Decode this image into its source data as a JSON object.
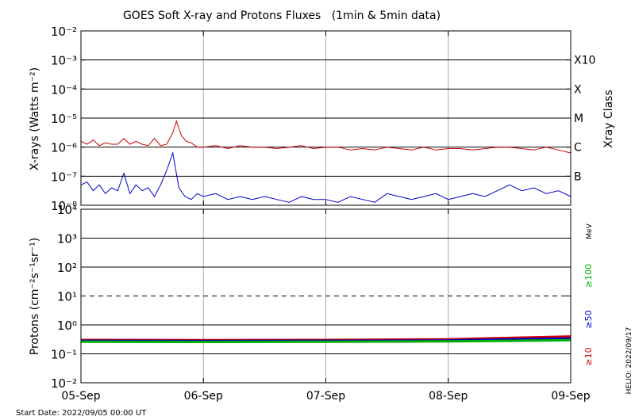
{
  "chart_data": {
    "type": "line",
    "title": "GOES Soft X-ray and Protons Fluxes   (1min & 5min data)",
    "x_ticks": [
      "05-Sep",
      "06-Sep",
      "07-Sep",
      "08-Sep",
      "09-Sep"
    ],
    "start_date": "Start Date: 2022/09/05 00:00 UT",
    "credit": "HELIO: 2022/09/17",
    "xray_panel": {
      "ylabel": "X-rays (Watts m⁻²)",
      "scale": "log",
      "ylim_exp": [
        -8,
        -2
      ],
      "y_ticks": [
        "10⁻²",
        "10⁻³",
        "10⁻⁴",
        "10⁻⁵",
        "10⁻⁶",
        "10⁻⁷",
        "10⁻⁸"
      ],
      "class_title": "Xray Class",
      "classes": [
        {
          "label": "X10",
          "exp": -3
        },
        {
          "label": "X",
          "exp": -4
        },
        {
          "label": "M",
          "exp": -5
        },
        {
          "label": "C",
          "exp": -6
        },
        {
          "label": "B",
          "exp": -7
        }
      ],
      "series": [
        {
          "color": "#cc0000",
          "x_days": [
            0,
            0.05,
            0.1,
            0.15,
            0.2,
            0.25,
            0.3,
            0.35,
            0.4,
            0.45,
            0.5,
            0.55,
            0.6,
            0.65,
            0.7,
            0.75,
            0.78,
            0.82,
            0.86,
            0.9,
            0.95,
            1.0,
            1.1,
            1.2,
            1.3,
            1.4,
            1.5,
            1.6,
            1.7,
            1.8,
            1.9,
            2.0,
            2.1,
            2.2,
            2.3,
            2.4,
            2.5,
            2.6,
            2.7,
            2.8,
            2.9,
            3.0,
            3.1,
            3.2,
            3.3,
            3.4,
            3.5,
            3.6,
            3.7,
            3.8,
            3.9,
            4.0
          ],
          "log10_flux": [
            -5.8,
            -5.9,
            -5.75,
            -5.95,
            -5.85,
            -5.9,
            -5.9,
            -5.7,
            -5.9,
            -5.8,
            -5.9,
            -5.95,
            -5.7,
            -5.95,
            -5.9,
            -5.5,
            -5.1,
            -5.6,
            -5.8,
            -5.85,
            -6.0,
            -6.0,
            -5.95,
            -6.05,
            -5.95,
            -6.0,
            -6.0,
            -6.05,
            -6.0,
            -5.95,
            -6.05,
            -6.0,
            -6.0,
            -6.1,
            -6.05,
            -6.1,
            -6.0,
            -6.05,
            -6.1,
            -6.0,
            -6.1,
            -6.05,
            -6.05,
            -6.1,
            -6.05,
            -6.0,
            -6.0,
            -6.05,
            -6.1,
            -6.0,
            -6.1,
            -6.2
          ]
        },
        {
          "color": "#0000cc",
          "x_days": [
            0,
            0.05,
            0.1,
            0.15,
            0.2,
            0.25,
            0.3,
            0.35,
            0.4,
            0.45,
            0.5,
            0.55,
            0.6,
            0.65,
            0.7,
            0.75,
            0.8,
            0.85,
            0.9,
            0.95,
            1.0,
            1.1,
            1.2,
            1.3,
            1.4,
            1.5,
            1.6,
            1.7,
            1.8,
            1.9,
            2.0,
            2.1,
            2.2,
            2.3,
            2.4,
            2.5,
            2.6,
            2.7,
            2.8,
            2.9,
            3.0,
            3.1,
            3.2,
            3.3,
            3.4,
            3.5,
            3.6,
            3.7,
            3.8,
            3.9,
            4.0
          ],
          "log10_flux": [
            -7.3,
            -7.2,
            -7.5,
            -7.3,
            -7.6,
            -7.4,
            -7.5,
            -6.9,
            -7.6,
            -7.3,
            -7.5,
            -7.4,
            -7.7,
            -7.3,
            -6.8,
            -6.2,
            -7.4,
            -7.7,
            -7.8,
            -7.6,
            -7.7,
            -7.6,
            -7.8,
            -7.7,
            -7.8,
            -7.7,
            -7.8,
            -7.9,
            -7.7,
            -7.8,
            -7.8,
            -7.9,
            -7.7,
            -7.8,
            -7.9,
            -7.6,
            -7.7,
            -7.8,
            -7.7,
            -7.6,
            -7.8,
            -7.7,
            -7.6,
            -7.7,
            -7.5,
            -7.3,
            -7.5,
            -7.4,
            -7.6,
            -7.5,
            -7.7
          ]
        }
      ]
    },
    "proton_panel": {
      "ylabel": "Protons (cm⁻²s⁻¹sr⁻¹)",
      "scale": "log",
      "ylim_exp": [
        -2,
        4
      ],
      "y_ticks": [
        "10⁴",
        "10³",
        "10²",
        "10¹",
        "10⁰",
        "10⁻¹",
        "10⁻²"
      ],
      "threshold_exp": 1,
      "unit": "MeV",
      "legend": [
        {
          "label": "≥100",
          "color": "#00b000"
        },
        {
          "label": "≥50",
          "color": "#0000cc"
        },
        {
          "label": "≥10",
          "color": "#cc0000"
        }
      ],
      "series": [
        {
          "label": "≥10",
          "color": "#cc0000",
          "x_days": [
            0,
            1,
            2,
            3,
            3.5,
            4
          ],
          "log10_flux": [
            -0.52,
            -0.53,
            -0.52,
            -0.5,
            -0.45,
            -0.4
          ]
        },
        {
          "label": "≥50",
          "color": "#0000cc",
          "x_days": [
            0,
            1,
            2,
            3,
            3.5,
            4
          ],
          "log10_flux": [
            -0.55,
            -0.56,
            -0.55,
            -0.54,
            -0.5,
            -0.47
          ]
        },
        {
          "label": "≥100",
          "color": "#00b000",
          "x_days": [
            0,
            1,
            2,
            3,
            3.5,
            4
          ],
          "log10_flux": [
            -0.58,
            -0.59,
            -0.58,
            -0.57,
            -0.55,
            -0.53
          ]
        }
      ]
    }
  }
}
